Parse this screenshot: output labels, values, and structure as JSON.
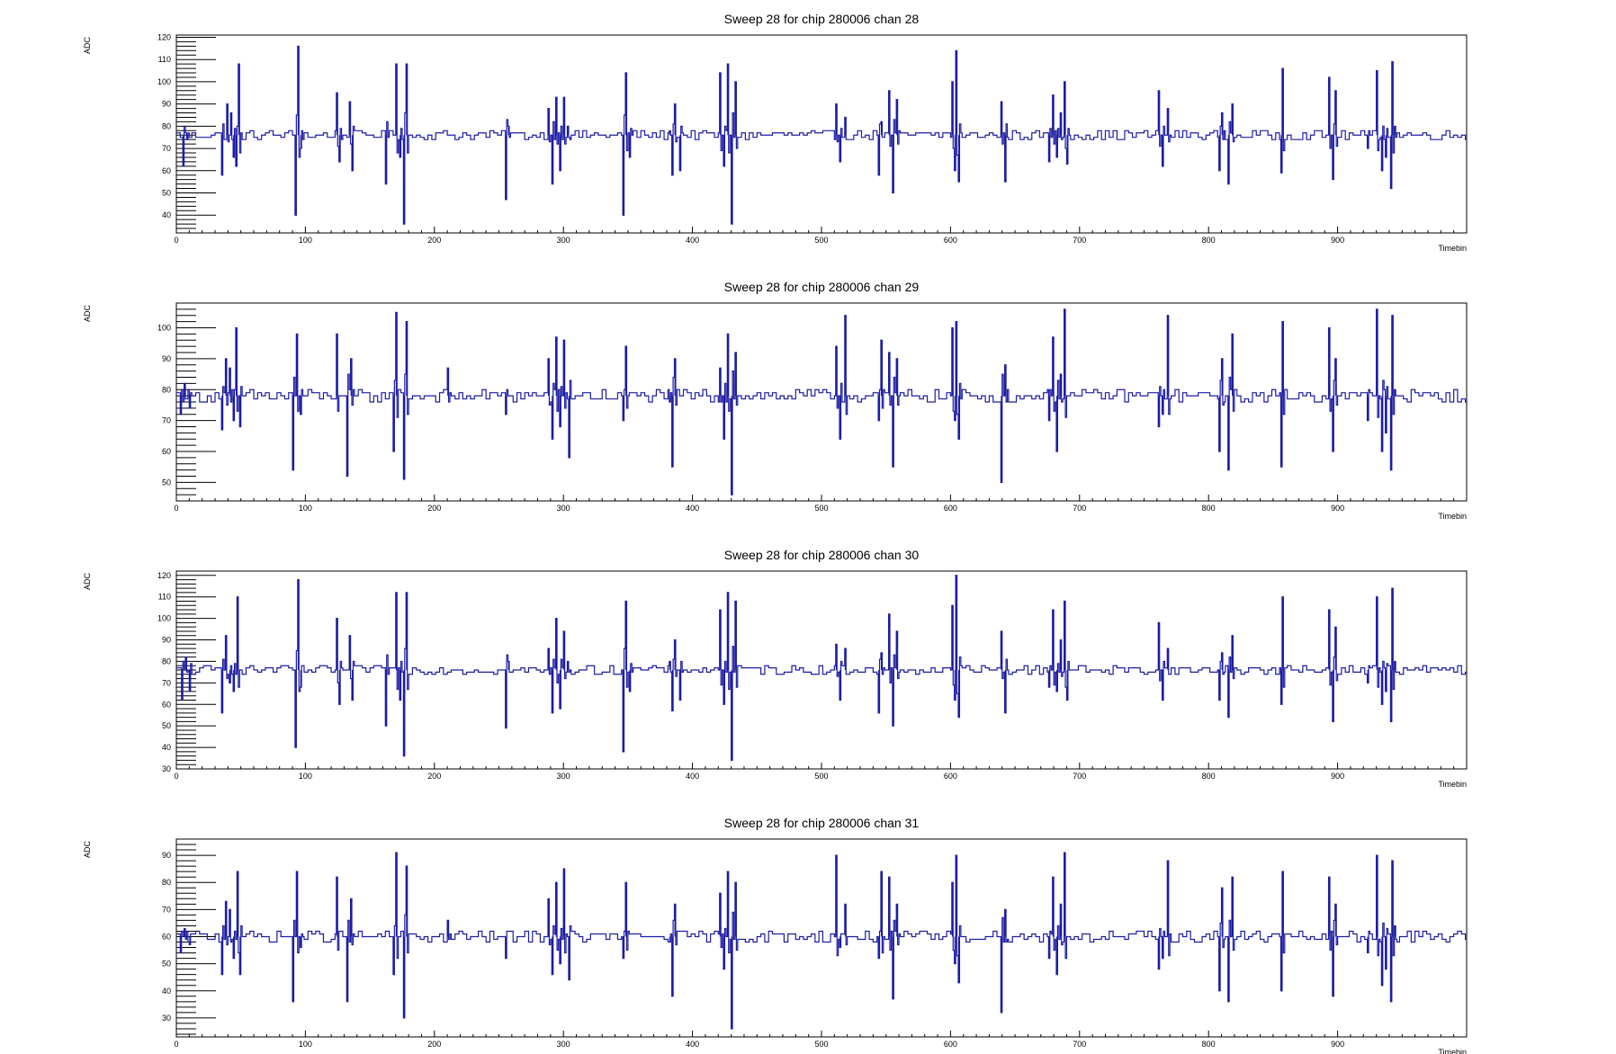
{
  "colors": {
    "trace": "#1c1ca4",
    "axis": "#000000",
    "background": "#ffffff"
  },
  "chart_data": [
    {
      "type": "line",
      "title": "Sweep 28 for chip 280006 chan 28",
      "xlabel": "Timebin",
      "ylabel": "ADC",
      "xlim": [
        0,
        1000
      ],
      "ylim": [
        32,
        121
      ],
      "xticks": [
        0,
        100,
        200,
        300,
        400,
        500,
        600,
        700,
        800,
        900
      ],
      "yticks": [
        40,
        50,
        60,
        70,
        80,
        90,
        100,
        110,
        120
      ],
      "baseline": 76,
      "spikes": [
        [
          5,
          62
        ],
        [
          8,
          74
        ],
        [
          35,
          58
        ],
        [
          39,
          90
        ],
        [
          42,
          86
        ],
        [
          44,
          66
        ],
        [
          46,
          62
        ],
        [
          48,
          108
        ],
        [
          92,
          40
        ],
        [
          94,
          116
        ],
        [
          96,
          70
        ],
        [
          124,
          95
        ],
        [
          126,
          64
        ],
        [
          134,
          91
        ],
        [
          136,
          60
        ],
        [
          162,
          54
        ],
        [
          170,
          108
        ],
        [
          173,
          66
        ],
        [
          176,
          36
        ],
        [
          178,
          108
        ],
        [
          255,
          47
        ],
        [
          257,
          80
        ],
        [
          288,
          88
        ],
        [
          291,
          54
        ],
        [
          294,
          93
        ],
        [
          297,
          60
        ],
        [
          300,
          93
        ],
        [
          303,
          80
        ],
        [
          346,
          40
        ],
        [
          348,
          104
        ],
        [
          351,
          66
        ],
        [
          382,
          78
        ],
        [
          384,
          58
        ],
        [
          386,
          90
        ],
        [
          390,
          60
        ],
        [
          421,
          104
        ],
        [
          424,
          62
        ],
        [
          427,
          108
        ],
        [
          430,
          36
        ],
        [
          433,
          100
        ],
        [
          511,
          90
        ],
        [
          514,
          64
        ],
        [
          518,
          84
        ],
        [
          544,
          58
        ],
        [
          546,
          82
        ],
        [
          552,
          96
        ],
        [
          555,
          50
        ],
        [
          558,
          92
        ],
        [
          601,
          100
        ],
        [
          603,
          60
        ],
        [
          604,
          114
        ],
        [
          606,
          55
        ],
        [
          639,
          91
        ],
        [
          642,
          55
        ],
        [
          676,
          64
        ],
        [
          679,
          94
        ],
        [
          682,
          66
        ],
        [
          685,
          86
        ],
        [
          688,
          100
        ],
        [
          690,
          63
        ],
        [
          761,
          96
        ],
        [
          764,
          62
        ],
        [
          768,
          88
        ],
        [
          808,
          60
        ],
        [
          810,
          86
        ],
        [
          815,
          54
        ],
        [
          818,
          90
        ],
        [
          856,
          59
        ],
        [
          857,
          106
        ],
        [
          893,
          102
        ],
        [
          896,
          56
        ],
        [
          898,
          96
        ],
        [
          923,
          70
        ],
        [
          930,
          105
        ],
        [
          934,
          60
        ],
        [
          937,
          66
        ],
        [
          941,
          52
        ],
        [
          942,
          109
        ],
        [
          944,
          80
        ]
      ]
    },
    {
      "type": "line",
      "title": "Sweep 28 for chip 280006 chan 29",
      "xlabel": "Timebin",
      "ylabel": "ADC",
      "xlim": [
        0,
        1000
      ],
      "ylim": [
        44,
        108
      ],
      "xticks": [
        0,
        100,
        200,
        300,
        400,
        500,
        600,
        700,
        800,
        900
      ],
      "yticks": [
        50,
        60,
        70,
        80,
        90,
        100
      ],
      "baseline": 78,
      "spikes": [
        [
          3,
          72
        ],
        [
          6,
          82
        ],
        [
          10,
          74
        ],
        [
          35,
          67
        ],
        [
          38,
          90
        ],
        [
          41,
          87
        ],
        [
          44,
          70
        ],
        [
          46,
          100
        ],
        [
          49,
          68
        ],
        [
          90,
          54
        ],
        [
          93,
          98
        ],
        [
          96,
          72
        ],
        [
          124,
          98
        ],
        [
          132,
          52
        ],
        [
          135,
          90
        ],
        [
          168,
          60
        ],
        [
          170,
          105
        ],
        [
          176,
          51
        ],
        [
          178,
          102
        ],
        [
          210,
          87
        ],
        [
          255,
          72
        ],
        [
          288,
          90
        ],
        [
          291,
          64
        ],
        [
          294,
          97
        ],
        [
          297,
          68
        ],
        [
          300,
          96
        ],
        [
          304,
          58
        ],
        [
          346,
          70
        ],
        [
          348,
          94
        ],
        [
          382,
          76
        ],
        [
          384,
          55
        ],
        [
          386,
          90
        ],
        [
          421,
          87
        ],
        [
          424,
          64
        ],
        [
          427,
          98
        ],
        [
          430,
          46
        ],
        [
          433,
          92
        ],
        [
          511,
          94
        ],
        [
          514,
          64
        ],
        [
          518,
          104
        ],
        [
          544,
          70
        ],
        [
          546,
          96
        ],
        [
          552,
          92
        ],
        [
          555,
          55
        ],
        [
          558,
          90
        ],
        [
          601,
          100
        ],
        [
          603,
          70
        ],
        [
          604,
          102
        ],
        [
          606,
          64
        ],
        [
          639,
          50
        ],
        [
          642,
          88
        ],
        [
          676,
          70
        ],
        [
          679,
          97
        ],
        [
          682,
          60
        ],
        [
          685,
          85
        ],
        [
          688,
          106
        ],
        [
          761,
          68
        ],
        [
          764,
          72
        ],
        [
          768,
          104
        ],
        [
          808,
          60
        ],
        [
          810,
          90
        ],
        [
          815,
          54
        ],
        [
          818,
          98
        ],
        [
          856,
          55
        ],
        [
          857,
          102
        ],
        [
          893,
          100
        ],
        [
          896,
          60
        ],
        [
          898,
          90
        ],
        [
          923,
          70
        ],
        [
          930,
          106
        ],
        [
          934,
          60
        ],
        [
          937,
          66
        ],
        [
          941,
          54
        ],
        [
          942,
          104
        ],
        [
          944,
          80
        ]
      ]
    },
    {
      "type": "line",
      "title": "Sweep 28 for chip 280006 chan 30",
      "xlabel": "Timebin",
      "ylabel": "ADC",
      "xlim": [
        0,
        1000
      ],
      "ylim": [
        30,
        122
      ],
      "xticks": [
        0,
        100,
        200,
        300,
        400,
        500,
        600,
        700,
        800,
        900
      ],
      "yticks": [
        30,
        40,
        50,
        60,
        70,
        80,
        90,
        100,
        110,
        120
      ],
      "baseline": 76,
      "spikes": [
        [
          4,
          62
        ],
        [
          7,
          82
        ],
        [
          10,
          66
        ],
        [
          35,
          56
        ],
        [
          38,
          92
        ],
        [
          41,
          70
        ],
        [
          44,
          66
        ],
        [
          47,
          110
        ],
        [
          92,
          40
        ],
        [
          94,
          118
        ],
        [
          96,
          68
        ],
        [
          124,
          100
        ],
        [
          126,
          60
        ],
        [
          134,
          92
        ],
        [
          136,
          62
        ],
        [
          162,
          50
        ],
        [
          170,
          112
        ],
        [
          173,
          62
        ],
        [
          176,
          36
        ],
        [
          178,
          112
        ],
        [
          255,
          49
        ],
        [
          257,
          80
        ],
        [
          288,
          86
        ],
        [
          291,
          56
        ],
        [
          294,
          100
        ],
        [
          297,
          58
        ],
        [
          300,
          94
        ],
        [
          303,
          80
        ],
        [
          346,
          38
        ],
        [
          348,
          108
        ],
        [
          351,
          66
        ],
        [
          382,
          80
        ],
        [
          384,
          57
        ],
        [
          386,
          90
        ],
        [
          390,
          62
        ],
        [
          421,
          104
        ],
        [
          424,
          60
        ],
        [
          427,
          112
        ],
        [
          430,
          34
        ],
        [
          433,
          108
        ],
        [
          511,
          88
        ],
        [
          514,
          62
        ],
        [
          518,
          86
        ],
        [
          544,
          56
        ],
        [
          546,
          84
        ],
        [
          552,
          102
        ],
        [
          555,
          50
        ],
        [
          558,
          94
        ],
        [
          601,
          106
        ],
        [
          603,
          62
        ],
        [
          604,
          120
        ],
        [
          606,
          54
        ],
        [
          639,
          94
        ],
        [
          642,
          56
        ],
        [
          676,
          68
        ],
        [
          679,
          104
        ],
        [
          682,
          66
        ],
        [
          685,
          90
        ],
        [
          688,
          108
        ],
        [
          690,
          62
        ],
        [
          761,
          98
        ],
        [
          764,
          62
        ],
        [
          768,
          86
        ],
        [
          808,
          62
        ],
        [
          810,
          84
        ],
        [
          815,
          54
        ],
        [
          818,
          92
        ],
        [
          856,
          60
        ],
        [
          857,
          110
        ],
        [
          893,
          104
        ],
        [
          896,
          52
        ],
        [
          898,
          96
        ],
        [
          923,
          70
        ],
        [
          930,
          110
        ],
        [
          934,
          60
        ],
        [
          937,
          66
        ],
        [
          941,
          52
        ],
        [
          942,
          114
        ],
        [
          944,
          80
        ]
      ]
    },
    {
      "type": "line",
      "title": "Sweep 28 for chip 280006 chan 31",
      "xlabel": "Timebin",
      "ylabel": "ADC",
      "xlim": [
        0,
        1000
      ],
      "ylim": [
        23,
        96
      ],
      "xticks": [
        0,
        100,
        200,
        300,
        400,
        500,
        600,
        700,
        800,
        900
      ],
      "yticks": [
        30,
        40,
        50,
        60,
        70,
        80,
        90
      ],
      "baseline": 60,
      "spikes": [
        [
          3,
          54
        ],
        [
          6,
          63
        ],
        [
          10,
          57
        ],
        [
          35,
          46
        ],
        [
          38,
          73
        ],
        [
          41,
          70
        ],
        [
          44,
          52
        ],
        [
          47,
          84
        ],
        [
          49,
          46
        ],
        [
          90,
          36
        ],
        [
          93,
          84
        ],
        [
          96,
          56
        ],
        [
          124,
          82
        ],
        [
          132,
          36
        ],
        [
          135,
          74
        ],
        [
          168,
          46
        ],
        [
          170,
          91
        ],
        [
          176,
          30
        ],
        [
          178,
          86
        ],
        [
          210,
          66
        ],
        [
          255,
          52
        ],
        [
          288,
          74
        ],
        [
          291,
          46
        ],
        [
          294,
          80
        ],
        [
          297,
          50
        ],
        [
          300,
          85
        ],
        [
          304,
          44
        ],
        [
          346,
          52
        ],
        [
          348,
          80
        ],
        [
          382,
          58
        ],
        [
          384,
          38
        ],
        [
          386,
          72
        ],
        [
          421,
          76
        ],
        [
          424,
          48
        ],
        [
          427,
          84
        ],
        [
          430,
          26
        ],
        [
          433,
          80
        ],
        [
          511,
          90
        ],
        [
          514,
          56
        ],
        [
          518,
          72
        ],
        [
          544,
          52
        ],
        [
          546,
          84
        ],
        [
          552,
          82
        ],
        [
          555,
          37
        ],
        [
          558,
          72
        ],
        [
          601,
          80
        ],
        [
          603,
          50
        ],
        [
          604,
          90
        ],
        [
          606,
          43
        ],
        [
          639,
          32
        ],
        [
          642,
          70
        ],
        [
          676,
          52
        ],
        [
          679,
          82
        ],
        [
          682,
          46
        ],
        [
          685,
          72
        ],
        [
          688,
          91
        ],
        [
          761,
          48
        ],
        [
          764,
          52
        ],
        [
          768,
          88
        ],
        [
          808,
          40
        ],
        [
          810,
          78
        ],
        [
          815,
          36
        ],
        [
          818,
          82
        ],
        [
          856,
          40
        ],
        [
          857,
          84
        ],
        [
          893,
          82
        ],
        [
          896,
          38
        ],
        [
          898,
          72
        ],
        [
          923,
          54
        ],
        [
          930,
          90
        ],
        [
          934,
          42
        ],
        [
          937,
          48
        ],
        [
          941,
          36
        ],
        [
          942,
          88
        ],
        [
          944,
          64
        ]
      ]
    }
  ]
}
